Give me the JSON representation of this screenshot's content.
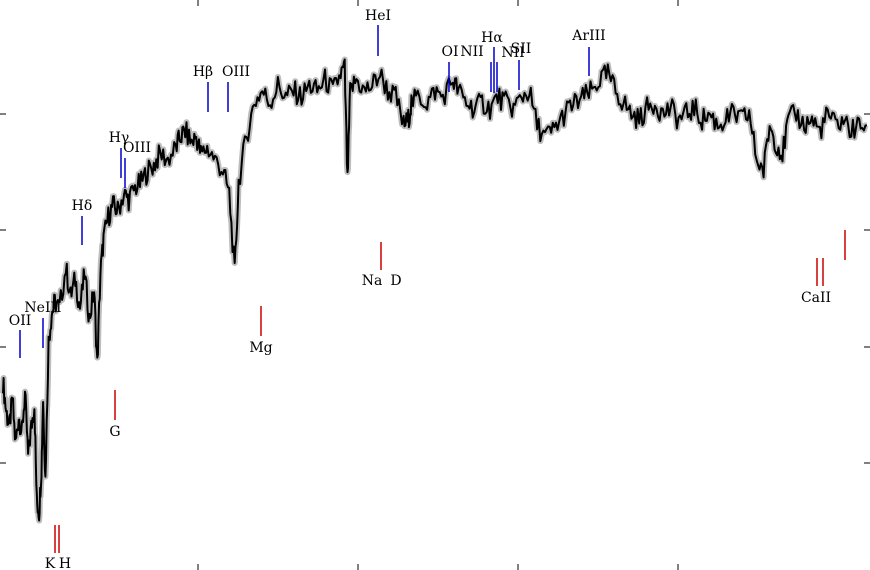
{
  "chart_data": {
    "type": "line",
    "title": "",
    "xlabel": "",
    "ylabel": "",
    "xlim": [
      3700,
      9200
    ],
    "ylim": [
      0,
      1.0
    ],
    "grid": false,
    "legend": "none",
    "colors": {
      "spectrum": "#000000",
      "error_band": "#bdbdbd",
      "emission_line": "#0000cc",
      "absorption_line": "#cc0000"
    },
    "series": [
      {
        "values": [
          [
            3700,
            0.33
          ],
          [
            3720,
            0.28
          ],
          [
            3740,
            0.25
          ],
          [
            3760,
            0.3
          ],
          [
            3780,
            0.22
          ],
          [
            3800,
            0.27
          ],
          [
            3820,
            0.24
          ],
          [
            3840,
            0.31
          ],
          [
            3860,
            0.2
          ],
          [
            3880,
            0.25
          ],
          [
            3900,
            0.29
          ],
          [
            3915,
            0.12
          ],
          [
            3930,
            0.1
          ],
          [
            3945,
            0.18
          ],
          [
            3955,
            0.3
          ],
          [
            3970,
            0.16
          ],
          [
            3990,
            0.4
          ],
          [
            4010,
            0.45
          ],
          [
            4030,
            0.47
          ],
          [
            4060,
            0.46
          ],
          [
            4100,
            0.53
          ],
          [
            4130,
            0.48
          ],
          [
            4160,
            0.51
          ],
          [
            4190,
            0.46
          ],
          [
            4220,
            0.52
          ],
          [
            4250,
            0.44
          ],
          [
            4280,
            0.49
          ],
          [
            4300,
            0.36
          ],
          [
            4320,
            0.52
          ],
          [
            4340,
            0.58
          ],
          [
            4370,
            0.62
          ],
          [
            4400,
            0.64
          ],
          [
            4430,
            0.63
          ],
          [
            4470,
            0.66
          ],
          [
            4500,
            0.65
          ],
          [
            4540,
            0.67
          ],
          [
            4580,
            0.68
          ],
          [
            4620,
            0.7
          ],
          [
            4660,
            0.71
          ],
          [
            4700,
            0.73
          ],
          [
            4750,
            0.72
          ],
          [
            4800,
            0.74
          ],
          [
            4830,
            0.76
          ],
          [
            4860,
            0.77
          ],
          [
            4900,
            0.75
          ],
          [
            4930,
            0.76
          ],
          [
            4960,
            0.73
          ],
          [
            5000,
            0.74
          ],
          [
            5050,
            0.72
          ],
          [
            5100,
            0.7
          ],
          [
            5140,
            0.66
          ],
          [
            5175,
            0.52
          ],
          [
            5200,
            0.68
          ],
          [
            5250,
            0.76
          ],
          [
            5300,
            0.82
          ],
          [
            5350,
            0.84
          ],
          [
            5400,
            0.82
          ],
          [
            5450,
            0.85
          ],
          [
            5500,
            0.83
          ],
          [
            5550,
            0.84
          ],
          [
            5600,
            0.83
          ],
          [
            5650,
            0.85
          ],
          [
            5700,
            0.84
          ],
          [
            5750,
            0.86
          ],
          [
            5800,
            0.84
          ],
          [
            5850,
            0.87
          ],
          [
            5875,
            0.88
          ],
          [
            5893,
            0.68
          ],
          [
            5910,
            0.84
          ],
          [
            5950,
            0.86
          ],
          [
            6000,
            0.84
          ],
          [
            6050,
            0.85
          ],
          [
            6100,
            0.87
          ],
          [
            6150,
            0.84
          ],
          [
            6200,
            0.83
          ],
          [
            6250,
            0.78
          ],
          [
            6280,
            0.79
          ],
          [
            6300,
            0.82
          ],
          [
            6350,
            0.83
          ],
          [
            6400,
            0.82
          ],
          [
            6450,
            0.84
          ],
          [
            6500,
            0.83
          ],
          [
            6563,
            0.86
          ],
          [
            6600,
            0.84
          ],
          [
            6650,
            0.82
          ],
          [
            6700,
            0.81
          ],
          [
            6750,
            0.82
          ],
          [
            6800,
            0.81
          ],
          [
            6850,
            0.83
          ],
          [
            6900,
            0.82
          ],
          [
            6950,
            0.81
          ],
          [
            7000,
            0.83
          ],
          [
            7050,
            0.84
          ],
          [
            7100,
            0.78
          ],
          [
            7150,
            0.76
          ],
          [
            7200,
            0.77
          ],
          [
            7250,
            0.79
          ],
          [
            7300,
            0.81
          ],
          [
            7350,
            0.82
          ],
          [
            7400,
            0.83
          ],
          [
            7450,
            0.84
          ],
          [
            7500,
            0.86
          ],
          [
            7550,
            0.87
          ],
          [
            7600,
            0.84
          ],
          [
            7650,
            0.82
          ],
          [
            7700,
            0.8
          ],
          [
            7750,
            0.79
          ],
          [
            7800,
            0.81
          ],
          [
            7850,
            0.82
          ],
          [
            7900,
            0.8
          ],
          [
            7950,
            0.81
          ],
          [
            8000,
            0.79
          ],
          [
            8050,
            0.8
          ],
          [
            8100,
            0.81
          ],
          [
            8150,
            0.79
          ],
          [
            8200,
            0.8
          ],
          [
            8250,
            0.78
          ],
          [
            8300,
            0.79
          ],
          [
            8350,
            0.8
          ],
          [
            8400,
            0.79
          ],
          [
            8450,
            0.8
          ],
          [
            8498,
            0.72
          ],
          [
            8542,
            0.7
          ],
          [
            8580,
            0.78
          ],
          [
            8620,
            0.75
          ],
          [
            8662,
            0.73
          ],
          [
            8700,
            0.79
          ],
          [
            8750,
            0.8
          ],
          [
            8800,
            0.78
          ],
          [
            8850,
            0.79
          ],
          [
            8900,
            0.77
          ],
          [
            8950,
            0.8
          ],
          [
            9000,
            0.78
          ],
          [
            9050,
            0.79
          ],
          [
            9100,
            0.77
          ],
          [
            9150,
            0.78
          ],
          [
            9200,
            0.78
          ]
        ]
      }
    ],
    "emission_lines": [
      {
        "label": "OII",
        "wavelength": 3727
      },
      {
        "label": "NeIII",
        "wavelength": 3869
      },
      {
        "label": "Hδ",
        "wavelength": 4102
      },
      {
        "label": "Hγ",
        "wavelength": 4340
      },
      {
        "label": "OIII",
        "wavelength": 4363
      },
      {
        "label": "Hβ",
        "wavelength": 4861
      },
      {
        "label": "OIII",
        "wavelength": 4959
      },
      {
        "label": "HeI",
        "wavelength": 5876
      },
      {
        "label": "OI",
        "wavelength": 6300
      },
      {
        "label": "NII",
        "wavelength": 6548
      },
      {
        "label": "Hα",
        "wavelength": 6563
      },
      {
        "label": "NII",
        "wavelength": 6584
      },
      {
        "label": "SII",
        "wavelength": 6717
      },
      {
        "label": "ArIII",
        "wavelength": 7136
      }
    ],
    "absorption_lines": [
      {
        "label": "K",
        "wavelength": 3934
      },
      {
        "label": "H",
        "wavelength": 3969
      },
      {
        "label": "G",
        "wavelength": 4304
      },
      {
        "label": "Mg",
        "wavelength": 5175
      },
      {
        "label": "Na",
        "wavelength": 5890
      },
      {
        "label": "D",
        "wavelength": 5896
      },
      {
        "label": "CaII",
        "wavelength": 8498
      },
      {
        "label": "CaII",
        "wavelength": 8542
      },
      {
        "label": "CaII",
        "wavelength": 8662
      }
    ]
  }
}
